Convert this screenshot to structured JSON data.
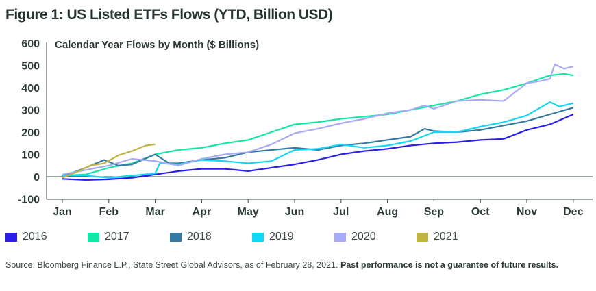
{
  "title": "Figure 1: US Listed ETFs Flows (YTD, Billion USD)",
  "chart_data": {
    "type": "line",
    "title": "Calendar Year Flows by Month ($ Billions)",
    "xlabel": "",
    "ylabel": "",
    "x_tick_labels": [
      "Jan",
      "Feb",
      "Mar",
      "Apr",
      "May",
      "Jun",
      "Jul",
      "Aug",
      "Sep",
      "Oct",
      "Nov",
      "Dec"
    ],
    "y_ticks": [
      600,
      500,
      400,
      300,
      200,
      100,
      0,
      -100
    ],
    "ylim": [
      -100,
      600
    ],
    "xlim_months": [
      0,
      11
    ],
    "legend_placement": "bottom",
    "series": [
      {
        "name": "2016",
        "color": "#2a1fe8",
        "x": [
          0,
          0.5,
          1,
          1.5,
          2,
          2.5,
          3,
          3.5,
          4,
          4.5,
          5,
          5.5,
          6,
          6.5,
          7,
          7.5,
          8,
          8.5,
          9,
          9.5,
          10,
          10.5,
          11
        ],
        "values": [
          -10,
          -15,
          -12,
          -5,
          10,
          25,
          35,
          35,
          25,
          40,
          55,
          75,
          100,
          115,
          125,
          140,
          150,
          155,
          165,
          170,
          210,
          235,
          280
        ]
      },
      {
        "name": "2017",
        "color": "#12e8a6",
        "x": [
          0,
          0.5,
          1,
          1.5,
          2,
          2.5,
          3,
          3.5,
          4,
          4.5,
          5,
          5.5,
          6,
          6.5,
          7,
          7.5,
          8,
          8.5,
          9,
          9.5,
          10,
          10.5,
          10.8,
          11
        ],
        "values": [
          5,
          10,
          40,
          60,
          100,
          120,
          130,
          150,
          165,
          200,
          235,
          245,
          260,
          270,
          280,
          300,
          320,
          340,
          370,
          390,
          420,
          455,
          462,
          455
        ]
      },
      {
        "name": "2018",
        "color": "#347aa3",
        "x": [
          0,
          0.5,
          0.9,
          1.2,
          1.5,
          2,
          2.3,
          2.5,
          3,
          3.5,
          4,
          4.5,
          5,
          5.5,
          6,
          6.5,
          7,
          7.5,
          7.8,
          8,
          8.5,
          9,
          9.5,
          10,
          10.5,
          11
        ],
        "values": [
          0,
          40,
          75,
          50,
          55,
          100,
          60,
          60,
          75,
          85,
          110,
          120,
          130,
          120,
          140,
          150,
          165,
          180,
          215,
          205,
          200,
          210,
          230,
          250,
          280,
          310
        ]
      },
      {
        "name": "2019",
        "color": "#12d6f5",
        "x": [
          0,
          0.5,
          1,
          1.5,
          2,
          2.1,
          2.5,
          3,
          3.5,
          4,
          4.5,
          5,
          5.5,
          6,
          6.5,
          7,
          7.5,
          8,
          8.5,
          9,
          9.5,
          10,
          10.5,
          10.7,
          11
        ],
        "values": [
          5,
          5,
          -5,
          5,
          15,
          60,
          55,
          75,
          70,
          60,
          70,
          120,
          125,
          145,
          130,
          140,
          160,
          200,
          200,
          225,
          245,
          275,
          335,
          315,
          330
        ]
      },
      {
        "name": "2020",
        "color": "#a7aaf5",
        "x": [
          0,
          0.5,
          1,
          1.5,
          2,
          2.5,
          3,
          3.5,
          4,
          4.5,
          5,
          5.5,
          6,
          6.5,
          7,
          7.5,
          7.8,
          8,
          8.5,
          9,
          9.5,
          10,
          10.3,
          10.5,
          10.6,
          10.8,
          11
        ],
        "values": [
          10,
          30,
          50,
          80,
          70,
          50,
          80,
          100,
          110,
          145,
          195,
          215,
          240,
          260,
          285,
          300,
          320,
          305,
          340,
          345,
          340,
          420,
          430,
          440,
          505,
          485,
          495
        ]
      },
      {
        "name": "2021",
        "color": "#c2b443",
        "x": [
          0,
          0.3,
          0.6,
          0.9,
          1.2,
          1.5,
          1.8,
          2
        ],
        "values": [
          -5,
          20,
          50,
          60,
          95,
          115,
          140,
          145
        ]
      }
    ]
  },
  "source_text": "Source: Bloomberg Finance L.P., State Street Global Advisors, as of February 28, 2021.",
  "source_bold": "Past performance is not a guarantee of future results."
}
